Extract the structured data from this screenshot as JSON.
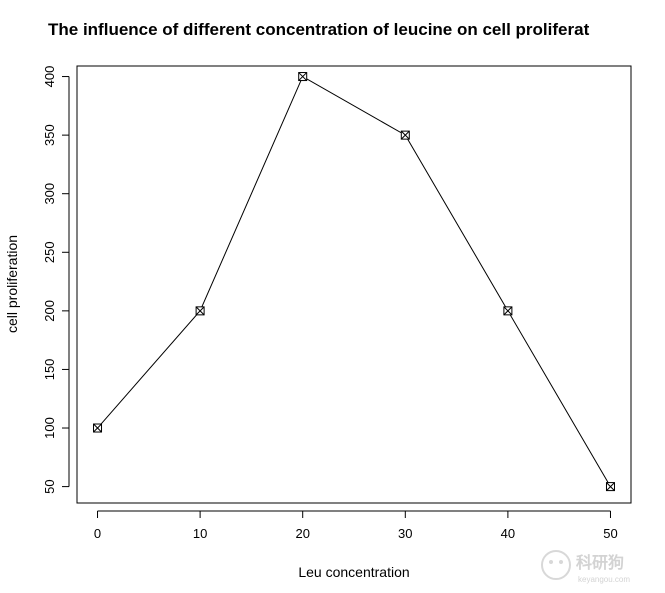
{
  "chart_data": {
    "type": "line",
    "title": "The influence of different concentration of leucine on cell proliferat",
    "xlabel": "Leu concentration",
    "ylabel": "cell proliferation",
    "x": [
      0,
      10,
      20,
      30,
      40,
      50
    ],
    "y": [
      100,
      200,
      400,
      350,
      200,
      50
    ],
    "xlim": [
      -2,
      52
    ],
    "ylim": [
      36,
      409
    ],
    "x_ticks": [
      0,
      10,
      20,
      30,
      40,
      50
    ],
    "y_ticks": [
      50,
      100,
      150,
      200,
      250,
      300,
      350,
      400
    ],
    "grid": false,
    "legend": "none",
    "marker": "boxed-x",
    "line_color": "#000000"
  },
  "watermark": {
    "text": "科研狗",
    "subtext": "keyangou.com"
  }
}
